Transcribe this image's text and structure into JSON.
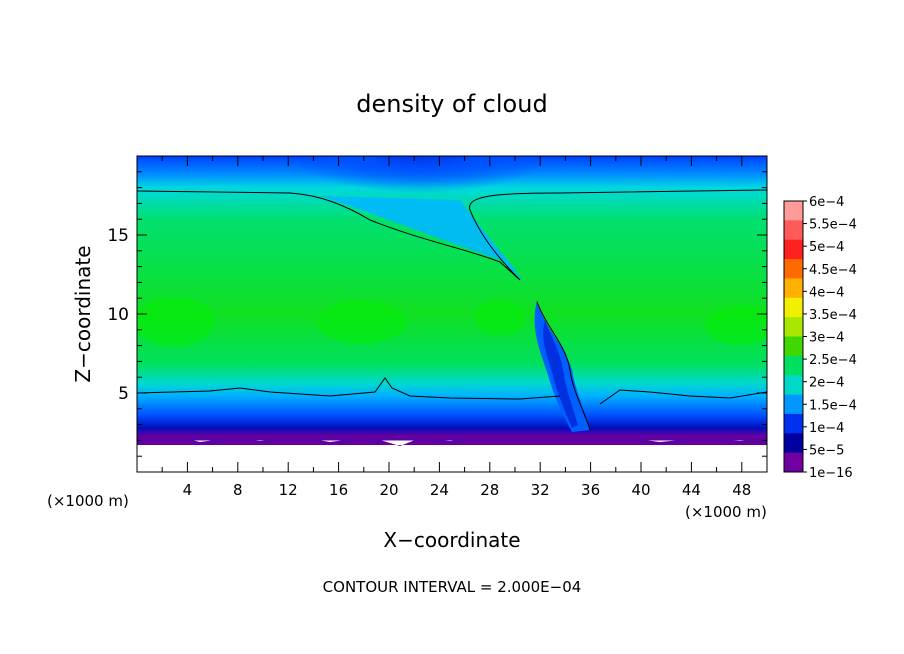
{
  "chart_data": {
    "type": "heatmap",
    "title": "density of cloud",
    "xlabel": "X−coordinate",
    "ylabel": "Z−coordinate",
    "x_unit_left": "(×1000 m)",
    "x_unit_right": "(×1000 m)",
    "xlim": [
      0,
      50
    ],
    "ylim": [
      0,
      20
    ],
    "x_ticks": [
      4,
      8,
      12,
      16,
      20,
      24,
      28,
      32,
      36,
      40,
      44,
      48
    ],
    "y_ticks": [
      5,
      10,
      15
    ],
    "footer": "CONTOUR INTERVAL = 2.000E−04",
    "colorbar": {
      "labels": [
        "6e−4",
        "5.5e−4",
        "5e−4",
        "4.5e−4",
        "4e−4",
        "3.5e−4",
        "3e−4",
        "2.5e−4",
        "2e−4",
        "1.5e−4",
        "1e−4",
        "5e−5",
        "1e−16"
      ],
      "colors": [
        "#ff9a9a",
        "#ff5a5a",
        "#ff2020",
        "#ff6a00",
        "#ffb000",
        "#f0f000",
        "#a8e800",
        "#40d800",
        "#00e060",
        "#00d8c8",
        "#0098ff",
        "#0030f0",
        "#0000a0",
        "#7000a0"
      ]
    },
    "field_description_values": {
      "ground_top_z": 2.0,
      "upper_cloud_top_z": 17.8,
      "lower_boundary_z": 5.0
    }
  }
}
